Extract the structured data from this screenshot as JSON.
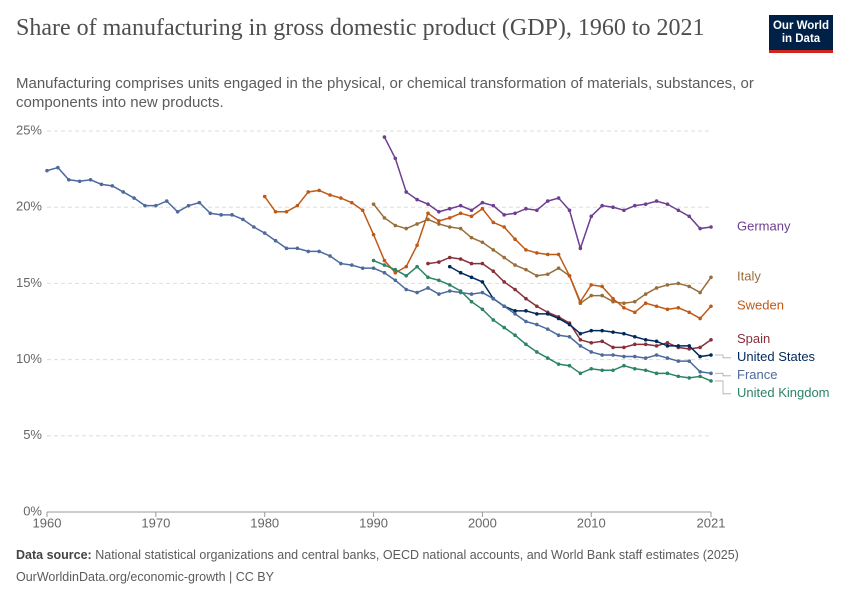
{
  "chart_data": {
    "type": "line",
    "title": "Share of manufacturing in gross domestic product (GDP), 1960 to 2021",
    "subtitle": "Manufacturing comprises units engaged in the physical, or chemical transformation of materials, substances, or components into new products.",
    "logo": [
      "Our World",
      "in Data"
    ],
    "source_label": "Data source:",
    "source": "National statistical organizations and central banks, OECD national accounts, and World Bank staff estimates (2025)",
    "footer": "OurWorldinData.org/economic-growth | CC BY",
    "x": [
      1960,
      1961,
      1962,
      1963,
      1964,
      1965,
      1966,
      1967,
      1968,
      1969,
      1970,
      1971,
      1972,
      1973,
      1974,
      1975,
      1976,
      1977,
      1978,
      1979,
      1980,
      1981,
      1982,
      1983,
      1984,
      1985,
      1986,
      1987,
      1988,
      1989,
      1990,
      1991,
      1992,
      1993,
      1994,
      1995,
      1996,
      1997,
      1998,
      1999,
      2000,
      2001,
      2002,
      2003,
      2004,
      2005,
      2006,
      2007,
      2008,
      2009,
      2010,
      2011,
      2012,
      2013,
      2014,
      2015,
      2016,
      2017,
      2018,
      2019,
      2020,
      2021
    ],
    "xlim": [
      1960,
      2021
    ],
    "xticks": [
      1960,
      1970,
      1980,
      1990,
      2000,
      2010,
      2021
    ],
    "ylim": [
      0,
      25
    ],
    "yticks": [
      {
        "value": 0,
        "label": "0%"
      },
      {
        "value": 5,
        "label": "5%"
      },
      {
        "value": 10,
        "label": "10%"
      },
      {
        "value": 15,
        "label": "15%"
      },
      {
        "value": 20,
        "label": "20%"
      },
      {
        "value": 25,
        "label": "25%"
      }
    ],
    "grid": true,
    "series": [
      {
        "name": "Germany",
        "color": "#6d3e91",
        "values": [
          null,
          null,
          null,
          null,
          null,
          null,
          null,
          null,
          null,
          null,
          null,
          null,
          null,
          null,
          null,
          null,
          null,
          null,
          null,
          null,
          null,
          null,
          null,
          null,
          null,
          null,
          null,
          null,
          null,
          null,
          null,
          24.6,
          23.2,
          21.0,
          20.5,
          20.2,
          19.7,
          19.9,
          20.1,
          19.8,
          20.3,
          20.1,
          19.5,
          19.6,
          19.9,
          19.8,
          20.4,
          20.6,
          19.8,
          17.3,
          19.4,
          20.1,
          20.0,
          19.8,
          20.1,
          20.2,
          20.4,
          20.2,
          19.8,
          19.4,
          18.6,
          18.7
        ]
      },
      {
        "name": "Italy",
        "color": "#996d39",
        "values": [
          null,
          null,
          null,
          null,
          null,
          null,
          null,
          null,
          null,
          null,
          null,
          null,
          null,
          null,
          null,
          null,
          null,
          null,
          null,
          null,
          null,
          null,
          null,
          null,
          null,
          null,
          null,
          null,
          null,
          null,
          20.2,
          19.3,
          18.8,
          18.6,
          18.9,
          19.2,
          18.9,
          18.7,
          18.6,
          18.0,
          17.7,
          17.2,
          16.7,
          16.2,
          15.9,
          15.5,
          15.6,
          16.0,
          15.5,
          13.7,
          14.2,
          14.2,
          13.8,
          13.7,
          13.8,
          14.3,
          14.7,
          14.9,
          15.0,
          14.8,
          14.4,
          15.4
        ]
      },
      {
        "name": "Sweden",
        "color": "#c05917",
        "values": [
          null,
          null,
          null,
          null,
          null,
          null,
          null,
          null,
          null,
          null,
          null,
          null,
          null,
          null,
          null,
          null,
          null,
          null,
          null,
          null,
          20.7,
          19.7,
          19.7,
          20.1,
          21.0,
          21.1,
          20.8,
          20.6,
          20.3,
          19.8,
          18.2,
          16.5,
          15.7,
          16.1,
          17.5,
          19.6,
          19.1,
          19.3,
          19.6,
          19.4,
          19.9,
          19.0,
          18.7,
          17.9,
          17.2,
          17.0,
          16.9,
          16.9,
          15.5,
          13.8,
          14.9,
          14.8,
          14.0,
          13.4,
          13.1,
          13.7,
          13.5,
          13.3,
          13.4,
          13.1,
          12.7,
          13.5
        ]
      },
      {
        "name": "Spain",
        "color": "#883039",
        "values": [
          null,
          null,
          null,
          null,
          null,
          null,
          null,
          null,
          null,
          null,
          null,
          null,
          null,
          null,
          null,
          null,
          null,
          null,
          null,
          null,
          null,
          null,
          null,
          null,
          null,
          null,
          null,
          null,
          null,
          null,
          null,
          null,
          null,
          null,
          null,
          16.3,
          16.4,
          16.7,
          16.6,
          16.3,
          16.3,
          15.8,
          15.1,
          14.6,
          14.0,
          13.5,
          13.1,
          12.8,
          12.4,
          11.3,
          11.1,
          11.2,
          10.8,
          10.8,
          11.0,
          11.0,
          10.9,
          11.1,
          10.8,
          10.7,
          10.8,
          11.3
        ]
      },
      {
        "name": "United States",
        "color": "#00295b",
        "values": [
          null,
          null,
          null,
          null,
          null,
          null,
          null,
          null,
          null,
          null,
          null,
          null,
          null,
          null,
          null,
          null,
          null,
          null,
          null,
          null,
          null,
          null,
          null,
          null,
          null,
          null,
          null,
          null,
          null,
          null,
          null,
          null,
          null,
          null,
          null,
          null,
          null,
          16.1,
          15.7,
          15.4,
          15.1,
          14.0,
          13.5,
          13.2,
          13.2,
          13.0,
          13.0,
          12.7,
          12.3,
          11.7,
          11.9,
          11.9,
          11.8,
          11.7,
          11.5,
          11.3,
          11.2,
          10.9,
          10.9,
          10.9,
          10.2,
          10.3
        ]
      },
      {
        "name": "France",
        "color": "#4c6a9c",
        "values": [
          22.4,
          22.6,
          21.8,
          21.7,
          21.8,
          21.5,
          21.4,
          21.0,
          20.6,
          20.1,
          20.1,
          20.4,
          19.7,
          20.1,
          20.3,
          19.6,
          19.5,
          19.5,
          19.2,
          18.7,
          18.3,
          17.8,
          17.3,
          17.3,
          17.1,
          17.1,
          16.8,
          16.3,
          16.2,
          16.0,
          16.0,
          15.7,
          15.2,
          14.6,
          14.4,
          14.7,
          14.3,
          14.5,
          14.4,
          14.3,
          14.4,
          14.0,
          13.5,
          13.0,
          12.5,
          12.3,
          12.0,
          11.6,
          11.5,
          10.9,
          10.5,
          10.3,
          10.3,
          10.2,
          10.2,
          10.1,
          10.3,
          10.1,
          9.9,
          9.9,
          9.2,
          9.1
        ]
      },
      {
        "name": "United Kingdom",
        "color": "#2c8465",
        "values": [
          null,
          null,
          null,
          null,
          null,
          null,
          null,
          null,
          null,
          null,
          null,
          null,
          null,
          null,
          null,
          null,
          null,
          null,
          null,
          null,
          null,
          null,
          null,
          null,
          null,
          null,
          null,
          null,
          null,
          null,
          16.5,
          16.2,
          15.9,
          15.5,
          16.1,
          15.4,
          15.2,
          14.9,
          14.5,
          13.8,
          13.3,
          12.6,
          12.1,
          11.6,
          11.0,
          10.5,
          10.1,
          9.7,
          9.6,
          9.1,
          9.4,
          9.3,
          9.3,
          9.6,
          9.4,
          9.3,
          9.1,
          9.1,
          8.9,
          8.8,
          8.9,
          8.6
        ]
      }
    ]
  }
}
